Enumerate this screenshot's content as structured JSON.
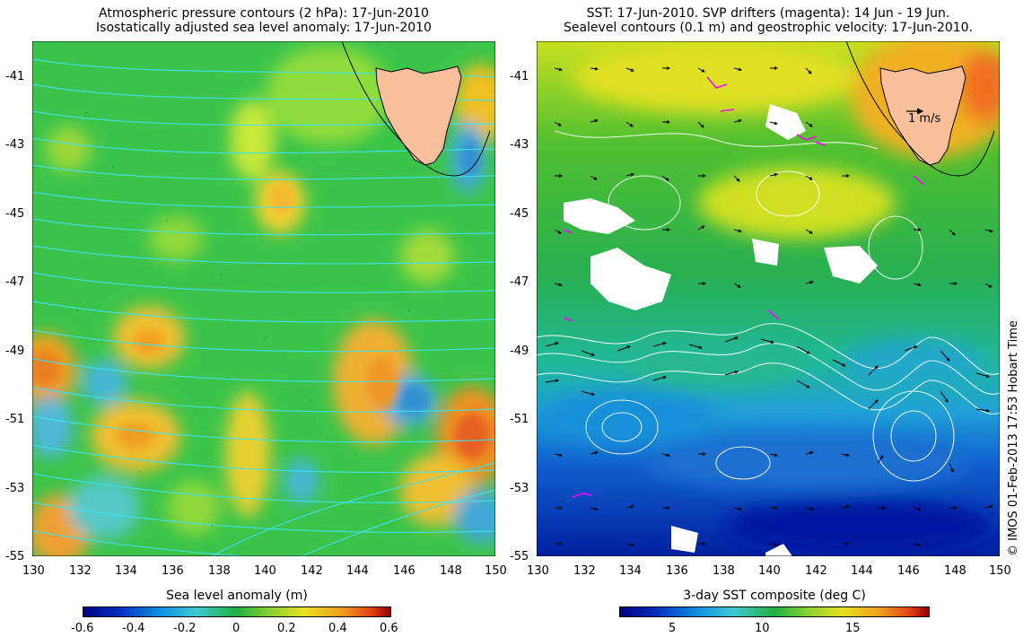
{
  "left_panel": {
    "title_line1": "Atmospheric pressure contours (2 hPa): 17-Jun-2010",
    "title_line2": "Isostatically adjusted sea level anomaly: 17-Jun-2010",
    "lon_ticks": [
      "130",
      "132",
      "134",
      "136",
      "138",
      "140",
      "142",
      "144",
      "146",
      "148",
      "150"
    ],
    "lat_ticks": [
      "-41",
      "-43",
      "-45",
      "-47",
      "-49",
      "-51",
      "-53",
      "-55"
    ],
    "colorbar_label": "Sea level anomaly (m)",
    "colorbar_ticks": [
      "-0.6",
      "-0.4",
      "-0.2",
      "0",
      "0.2",
      "0.4",
      "0.6"
    ],
    "colorbar_range": [
      -0.6,
      0.6
    ]
  },
  "right_panel": {
    "title_line1": "SST: 17-Jun-2010. SVP drifters (magenta): 14 Jun - 19 Jun.",
    "title_line2": "Sealevel contours (0.1 m) and geostrophic velocity: 17-Jun-2010.",
    "lon_ticks": [
      "130",
      "132",
      "134",
      "136",
      "138",
      "140",
      "142",
      "144",
      "146",
      "148",
      "150"
    ],
    "lat_ticks": [
      "-41",
      "-43",
      "-45",
      "-47",
      "-49",
      "-51",
      "-53",
      "-55"
    ],
    "scale_arrow_label": "1 m/s",
    "colorbar_label": "3-day SST composite (deg C)",
    "colorbar_ticks": [
      "5",
      "10",
      "15"
    ],
    "credit": "© IMOS 01-Feb-2013 17:53 Hobart Time"
  },
  "colors": {
    "land": "#f9c09b",
    "pressure_contours": "#40e0f0",
    "sealevel_contours": "#ffffff",
    "drifters": "#ff00ff",
    "background": "#ffffff"
  }
}
